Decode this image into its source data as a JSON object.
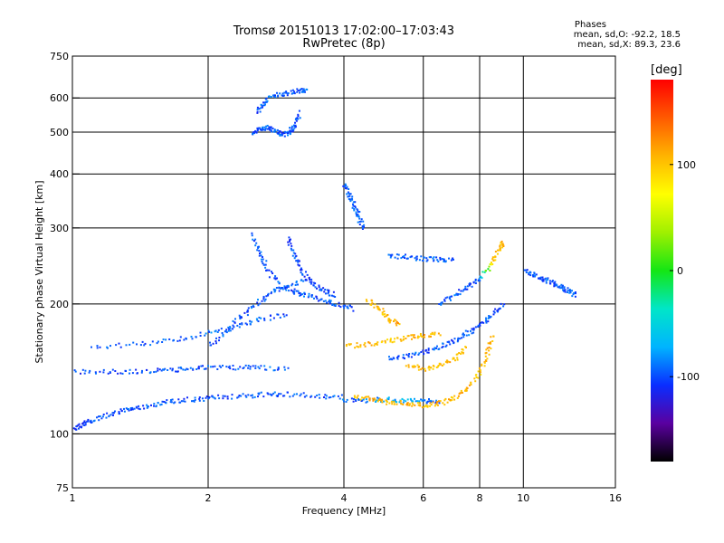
{
  "header": {
    "title_line1": "Tromsø 20151013 17:02:00–17:03:43",
    "title_line2": "RwPretec (8p)",
    "stats_heading": "Phases",
    "stats_line_o": "mean, sd,O:  -92.2, 18.5",
    "stats_line_x": "mean, sd,X:  89.3, 23.6"
  },
  "colorbar": {
    "label": "[deg]",
    "range": [
      -180,
      180
    ],
    "ticks": [
      100,
      0,
      -100
    ],
    "colors": [
      "#000000",
      "#5a00a0",
      "#0a2dff",
      "#00b4ff",
      "#00e6c8",
      "#14e614",
      "#a0f000",
      "#ffff00",
      "#ffb400",
      "#ff5a00",
      "#ff0000"
    ]
  },
  "chart_data": {
    "type": "scatter",
    "title": "Tromsø 20151013 17:02:00–17:03:43",
    "subtitle": "RwPretec (8p)",
    "xlabel": "Frequency [MHz]",
    "ylabel": "Stationary phase Virtual Height [km]",
    "x_scale": "log",
    "y_scale": "log",
    "xlim": [
      1,
      16
    ],
    "ylim": [
      75,
      750
    ],
    "x_ticks": [
      1,
      2,
      4,
      6,
      8,
      10,
      16
    ],
    "y_ticks": [
      75,
      100,
      200,
      300,
      400,
      500,
      600,
      750
    ],
    "grid": true,
    "color_scale": "phase_deg",
    "series": [
      {
        "values": [
          [
            1.0,
            103,
            -110
          ],
          [
            1.05,
            106,
            -105
          ],
          [
            1.1,
            108,
            -100
          ],
          [
            1.2,
            111,
            -100
          ],
          [
            1.3,
            114,
            -95
          ],
          [
            1.4,
            116,
            -100
          ],
          [
            1.55,
            118,
            -95
          ],
          [
            1.7,
            120,
            -100
          ],
          [
            1.9,
            121,
            -95
          ],
          [
            2.1,
            122,
            -100
          ],
          [
            2.4,
            123,
            -95
          ],
          [
            2.7,
            124,
            -100
          ],
          [
            3.0,
            124,
            -95
          ],
          [
            3.5,
            123,
            -100
          ],
          [
            4.0,
            122,
            -90
          ]
        ]
      },
      {
        "values": [
          [
            1.0,
            140,
            -105
          ],
          [
            1.2,
            140,
            -100
          ],
          [
            1.4,
            140,
            -100
          ],
          [
            1.6,
            141,
            -95
          ],
          [
            1.8,
            142,
            -100
          ],
          [
            2.0,
            143,
            -95
          ],
          [
            2.3,
            143,
            -100
          ],
          [
            2.6,
            143,
            -95
          ],
          [
            3.0,
            142,
            -100
          ]
        ]
      },
      {
        "values": [
          [
            1.1,
            160,
            -100
          ],
          [
            1.4,
            162,
            -95
          ],
          [
            1.7,
            166,
            -100
          ],
          [
            2.0,
            172,
            -90
          ],
          [
            2.3,
            178,
            -100
          ],
          [
            2.6,
            185,
            -95
          ],
          [
            3.0,
            190,
            -100
          ]
        ]
      },
      {
        "values": [
          [
            2.0,
            160,
            -100
          ],
          [
            2.2,
            175,
            -95
          ],
          [
            2.4,
            190,
            -100
          ],
          [
            2.6,
            205,
            -95
          ],
          [
            2.8,
            215,
            -100
          ],
          [
            3.0,
            222,
            -95
          ],
          [
            3.3,
            228,
            -100
          ]
        ]
      },
      {
        "values": [
          [
            2.5,
            290,
            -100
          ],
          [
            2.6,
            260,
            -95
          ],
          [
            2.7,
            240,
            -100
          ],
          [
            2.9,
            220,
            -95
          ],
          [
            3.1,
            215,
            -100
          ],
          [
            3.3,
            210,
            -95
          ],
          [
            3.6,
            205,
            -100
          ],
          [
            3.9,
            200,
            -95
          ],
          [
            4.2,
            195,
            -100
          ]
        ]
      },
      {
        "values": [
          [
            3.0,
            285,
            -110
          ],
          [
            3.1,
            260,
            -100
          ],
          [
            3.2,
            240,
            -105
          ],
          [
            3.4,
            225,
            -100
          ],
          [
            3.6,
            215,
            -105
          ],
          [
            3.8,
            210,
            -100
          ]
        ]
      },
      {
        "values": [
          [
            2.5,
            500,
            -100
          ],
          [
            2.6,
            510,
            -95
          ],
          [
            2.7,
            515,
            -100
          ],
          [
            2.8,
            505,
            -95
          ],
          [
            2.9,
            495,
            -100
          ],
          [
            3.0,
            500,
            -95
          ],
          [
            3.1,
            520,
            -100
          ],
          [
            3.2,
            560,
            -95
          ]
        ]
      },
      {
        "values": [
          [
            2.55,
            560,
            -100
          ],
          [
            2.65,
            590,
            -95
          ],
          [
            2.8,
            610,
            -100
          ],
          [
            3.0,
            620,
            -95
          ],
          [
            3.2,
            630,
            -100
          ],
          [
            3.3,
            625,
            -95
          ]
        ]
      },
      {
        "values": [
          [
            4.0,
            380,
            -100
          ],
          [
            4.1,
            360,
            -95
          ],
          [
            4.2,
            340,
            -100
          ],
          [
            4.3,
            320,
            -95
          ],
          [
            4.4,
            300,
            -100
          ]
        ]
      },
      {
        "values": [
          [
            4.0,
            120,
            -100
          ],
          [
            4.5,
            120,
            -90
          ],
          [
            5.0,
            121,
            -80
          ],
          [
            5.5,
            120,
            -70
          ],
          [
            6.0,
            120,
            -85
          ],
          [
            6.5,
            119,
            -100
          ]
        ]
      },
      {
        "values": [
          [
            4.2,
            122,
            100
          ],
          [
            4.6,
            121,
            110
          ],
          [
            5.0,
            119,
            105
          ],
          [
            5.5,
            118,
            110
          ],
          [
            6.0,
            117,
            100
          ],
          [
            6.5,
            118,
            110
          ],
          [
            7.0,
            122,
            105
          ],
          [
            7.5,
            128,
            110
          ],
          [
            8.0,
            140,
            100
          ],
          [
            8.3,
            155,
            105
          ],
          [
            8.5,
            170,
            110
          ]
        ]
      },
      {
        "values": [
          [
            4.0,
            160,
            100
          ],
          [
            4.5,
            162,
            110
          ],
          [
            5.0,
            165,
            100
          ],
          [
            5.5,
            168,
            105
          ],
          [
            6.0,
            170,
            110
          ],
          [
            6.5,
            172,
            100
          ]
        ]
      },
      {
        "values": [
          [
            4.5,
            205,
            110
          ],
          [
            4.8,
            195,
            100
          ],
          [
            5.0,
            185,
            105
          ],
          [
            5.3,
            180,
            110
          ]
        ]
      },
      {
        "values": [
          [
            5.5,
            145,
            105
          ],
          [
            6.0,
            142,
            100
          ],
          [
            6.5,
            145,
            110
          ],
          [
            7.0,
            150,
            105
          ],
          [
            7.5,
            160,
            100
          ]
        ]
      },
      {
        "values": [
          [
            5.0,
            150,
            -100
          ],
          [
            5.5,
            152,
            -95
          ],
          [
            6.0,
            155,
            -100
          ],
          [
            6.5,
            160,
            -95
          ],
          [
            7.0,
            165,
            -100
          ],
          [
            7.5,
            172,
            -95
          ],
          [
            8.0,
            180,
            -100
          ],
          [
            8.5,
            190,
            -95
          ],
          [
            9.0,
            200,
            -100
          ]
        ]
      },
      {
        "values": [
          [
            5.0,
            260,
            -90
          ],
          [
            5.5,
            258,
            -95
          ],
          [
            6.0,
            255,
            -100
          ],
          [
            6.5,
            255,
            -95
          ],
          [
            7.0,
            253,
            -100
          ]
        ]
      },
      {
        "values": [
          [
            6.5,
            200,
            -100
          ],
          [
            7.0,
            210,
            -95
          ],
          [
            7.5,
            220,
            -100
          ],
          [
            8.0,
            230,
            -95
          ],
          [
            8.5,
            250,
            100
          ],
          [
            8.8,
            270,
            105
          ],
          [
            9.0,
            280,
            110
          ]
        ]
      },
      {
        "values": [
          [
            10.0,
            240,
            -100
          ],
          [
            10.5,
            235,
            -95
          ],
          [
            11.0,
            230,
            -100
          ],
          [
            11.5,
            225,
            -95
          ],
          [
            12.0,
            220,
            -100
          ],
          [
            12.5,
            215,
            -95
          ],
          [
            13.0,
            210,
            -100
          ]
        ]
      }
    ]
  }
}
